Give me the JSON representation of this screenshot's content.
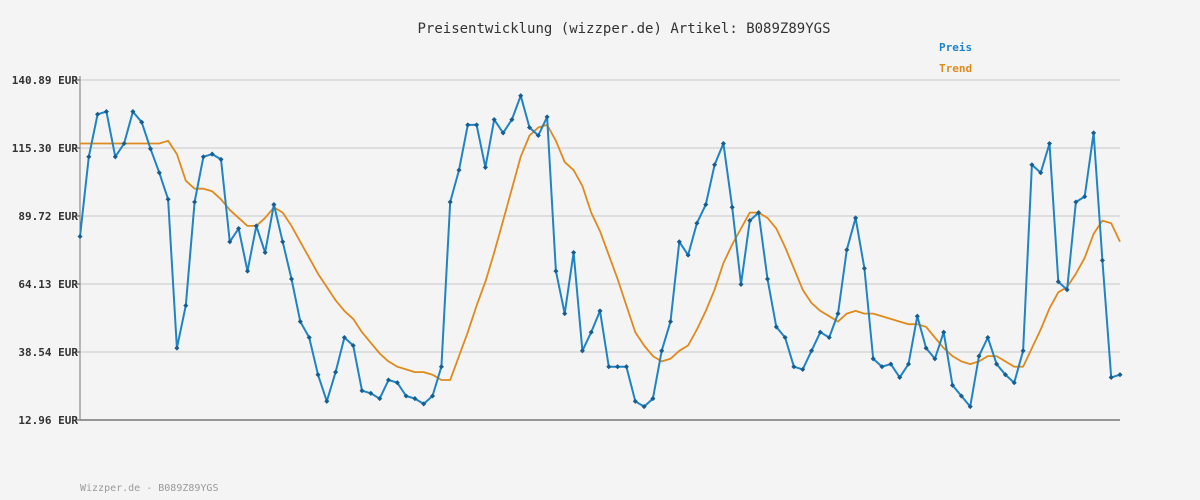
{
  "chart_data": {
    "type": "line",
    "title": "Preisentwicklung (wizzper.de) Artikel: B089Z89YGS",
    "xlabel": "",
    "ylabel": "",
    "ylim": [
      12.96,
      140.89
    ],
    "yticks": [
      "140.89 EUR",
      "115.30 EUR",
      "89.72 EUR",
      "64.13 EUR",
      "38.54 EUR",
      "12.96 EUR"
    ],
    "ytick_values": [
      140.89,
      115.3,
      89.72,
      64.13,
      38.54,
      12.96
    ],
    "grid": true,
    "legend_placement": "top-right",
    "series": [
      {
        "name": "Preis",
        "color": "#1f84c4",
        "values": [
          82,
          112,
          128,
          129,
          112,
          117,
          129,
          125,
          115,
          106,
          96,
          40,
          56,
          95,
          112,
          113,
          111,
          80,
          85,
          69,
          86,
          76,
          94,
          80,
          66,
          50,
          44,
          30,
          20,
          31,
          44,
          41,
          24,
          23,
          21,
          28,
          27,
          22,
          21,
          19,
          22,
          33,
          95,
          107,
          124,
          124,
          108,
          126,
          121,
          126,
          135,
          123,
          120,
          127,
          69,
          53,
          76,
          39,
          46,
          54,
          33,
          33,
          33,
          20,
          18,
          21,
          39,
          50,
          80,
          75,
          87,
          94,
          109,
          117,
          93,
          64,
          88,
          91,
          66,
          48,
          44,
          33,
          32,
          39,
          46,
          44,
          53,
          77,
          89,
          70,
          36,
          33,
          34,
          29,
          34,
          52,
          40,
          36,
          46,
          26,
          22,
          18,
          37,
          44,
          34,
          30,
          27,
          39,
          109,
          106,
          117,
          65,
          62,
          95,
          97,
          121,
          73,
          29,
          30
        ],
        "trend": [
          117,
          117,
          117,
          117,
          117,
          117,
          117,
          117,
          117,
          117,
          118,
          113,
          103,
          100,
          100,
          99,
          96,
          92,
          89,
          86,
          86,
          89,
          93,
          91,
          86,
          80,
          74,
          68,
          63,
          58,
          54,
          51,
          46,
          42,
          38,
          35,
          33,
          32,
          31,
          31,
          30,
          28,
          28,
          37,
          46,
          56,
          65,
          76,
          88,
          100,
          112,
          120,
          123,
          124,
          118,
          110,
          107,
          101,
          91,
          84,
          75,
          66,
          56,
          46,
          41,
          37,
          35,
          36,
          39,
          41,
          47,
          54,
          62,
          72,
          79,
          85,
          91,
          91,
          89,
          85,
          78,
          70,
          62,
          57,
          54,
          52,
          50,
          53,
          54,
          53,
          53,
          52,
          51,
          50,
          49,
          49,
          48,
          44,
          40,
          37,
          35,
          34,
          35,
          37,
          37,
          35,
          33,
          33,
          40,
          47,
          55,
          61,
          63,
          68,
          74,
          83,
          88,
          87,
          80
        ]
      },
      {
        "name": "Trend",
        "color": "#df8a1c"
      }
    ]
  },
  "footer": {
    "text": "Wizzper.de - B089Z89YGS"
  }
}
